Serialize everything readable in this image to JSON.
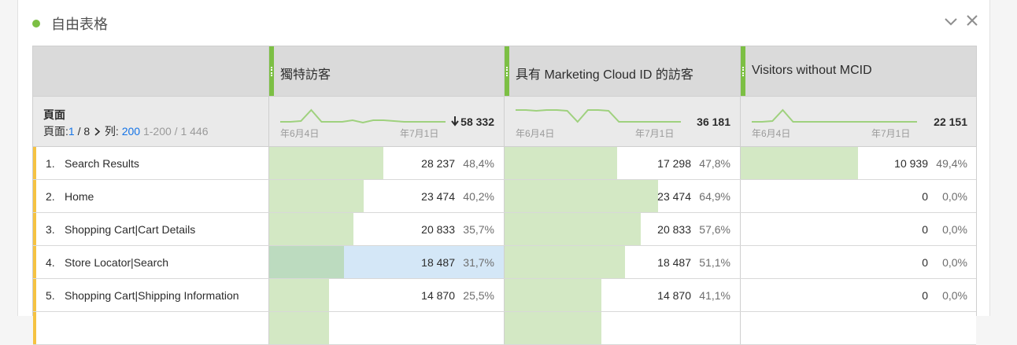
{
  "panel": {
    "title": "自由表格",
    "accent_color": "#7cbf44",
    "icons": [
      "chevron-down-icon",
      "close-icon"
    ]
  },
  "table": {
    "dimension": {
      "title": "頁面",
      "pager_label": "頁面:",
      "page_current": "1",
      "page_sep": " / 8",
      "rows_label": " 列: ",
      "rows_value": "200",
      "range_text": " 1-200 / 1 446"
    },
    "columns": [
      {
        "title": "獨特訪客",
        "total": "58 332",
        "sort_indicator": "descending",
        "date_start": "年6月4日",
        "date_end": "年7月1日",
        "spark": [
          0.1,
          0.1,
          0.15,
          0.85,
          0.1,
          0.1,
          0.1,
          0.2,
          0.05,
          0.2,
          0.2,
          0.15,
          0.1,
          0.1,
          0.1,
          0.1,
          0.1
        ]
      },
      {
        "title": "具有 Marketing Cloud ID 的訪客",
        "total": "36 181",
        "sort_indicator": "",
        "date_start": "年6月4日",
        "date_end": "年7月1日",
        "spark": [
          0.85,
          0.85,
          0.8,
          0.85,
          0.85,
          0.8,
          0.1,
          0.85,
          0.85,
          0.8,
          0.1,
          0.1,
          0.1,
          0.1,
          0.1,
          0.1,
          0.1
        ]
      },
      {
        "title": "Visitors without MCID",
        "total": "22 151",
        "sort_indicator": "",
        "date_start": "年6月4日",
        "date_end": "年7月1日",
        "spark": [
          0.1,
          0.1,
          0.15,
          0.85,
          0.1,
          0.1,
          0.1,
          0.1,
          0.1,
          0.1,
          0.1,
          0.1,
          0.1,
          0.1,
          0.1,
          0.1,
          0.1
        ]
      }
    ],
    "rows": [
      {
        "rank": "1.",
        "name": "Search Results",
        "cells": [
          {
            "value": "28 237",
            "pct": "48,4%",
            "fraction": 0.484
          },
          {
            "value": "17 298",
            "pct": "47,8%",
            "fraction": 0.478
          },
          {
            "value": "10 939",
            "pct": "49,4%",
            "fraction": 0.494
          }
        ]
      },
      {
        "rank": "2.",
        "name": "Home",
        "cells": [
          {
            "value": "23 474",
            "pct": "40,2%",
            "fraction": 0.402
          },
          {
            "value": "23 474",
            "pct": "64,9%",
            "fraction": 0.649
          },
          {
            "value": "0",
            "pct": "0,0%",
            "fraction": 0
          }
        ]
      },
      {
        "rank": "3.",
        "name": "Shopping Cart|Cart Details",
        "cells": [
          {
            "value": "20 833",
            "pct": "35,7%",
            "fraction": 0.357
          },
          {
            "value": "20 833",
            "pct": "57,6%",
            "fraction": 0.576
          },
          {
            "value": "0",
            "pct": "0,0%",
            "fraction": 0
          }
        ]
      },
      {
        "rank": "4.",
        "name": "Store Locator|Search",
        "cells": [
          {
            "value": "18 487",
            "pct": "31,7%",
            "fraction": 0.317,
            "highlighted": true
          },
          {
            "value": "18 487",
            "pct": "51,1%",
            "fraction": 0.511
          },
          {
            "value": "0",
            "pct": "0,0%",
            "fraction": 0
          }
        ]
      },
      {
        "rank": "5.",
        "name": "Shopping Cart|Shipping Information",
        "cells": [
          {
            "value": "14 870",
            "pct": "25,5%",
            "fraction": 0.255
          },
          {
            "value": "14 870",
            "pct": "41,1%",
            "fraction": 0.411
          },
          {
            "value": "0",
            "pct": "0,0%",
            "fraction": 0
          }
        ]
      },
      {
        "rank": "",
        "name": "",
        "cells": [
          {
            "value": "",
            "pct": "",
            "fraction": 0.255
          },
          {
            "value": "",
            "pct": "",
            "fraction": 0.411
          },
          {
            "value": "",
            "pct": "",
            "fraction": 0
          }
        ]
      }
    ]
  }
}
